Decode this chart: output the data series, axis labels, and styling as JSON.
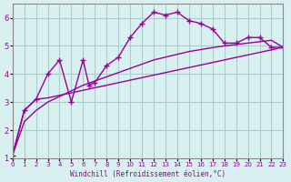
{
  "xlabel": "Windchill (Refroidissement éolien,°C)",
  "background_color": "#d8f0f0",
  "grid_color": "#aacccc",
  "line_color": "#990099",
  "x_ticks": [
    0,
    1,
    2,
    3,
    4,
    5,
    6,
    7,
    8,
    9,
    10,
    11,
    12,
    13,
    14,
    15,
    16,
    17,
    18,
    19,
    20,
    21,
    22,
    23
  ],
  "y_ticks": [
    1,
    2,
    3,
    4,
    5,
    6
  ],
  "xlim": [
    0,
    23
  ],
  "ylim": [
    1,
    6.5
  ],
  "series1_x": [
    0,
    1,
    2,
    3,
    4,
    5,
    6,
    6.5,
    7,
    8,
    9,
    10,
    11,
    12,
    13,
    14,
    15,
    16,
    17,
    18,
    19,
    20,
    21,
    22,
    23
  ],
  "series1_y": [
    1.1,
    2.7,
    3.1,
    4.0,
    4.5,
    3.0,
    4.5,
    3.6,
    3.7,
    4.3,
    4.6,
    5.3,
    5.8,
    6.2,
    6.1,
    6.2,
    5.9,
    5.8,
    5.6,
    5.1,
    5.1,
    5.3,
    5.3,
    4.95,
    4.95
  ],
  "series2_x": [
    0,
    1,
    2,
    3,
    4,
    5,
    6,
    7,
    8,
    9,
    10,
    11,
    12,
    13,
    14,
    15,
    16,
    17,
    18,
    19,
    20,
    21,
    22,
    23
  ],
  "series2_y": [
    1.1,
    2.3,
    2.7,
    3.0,
    3.2,
    3.4,
    3.6,
    3.75,
    3.9,
    4.05,
    4.2,
    4.35,
    4.5,
    4.6,
    4.7,
    4.8,
    4.87,
    4.94,
    5.0,
    5.05,
    5.1,
    5.15,
    5.2,
    4.95
  ],
  "series3_x": [
    0,
    1,
    2,
    3,
    23
  ],
  "series3_y": [
    1.1,
    2.7,
    3.1,
    3.15,
    4.95
  ]
}
